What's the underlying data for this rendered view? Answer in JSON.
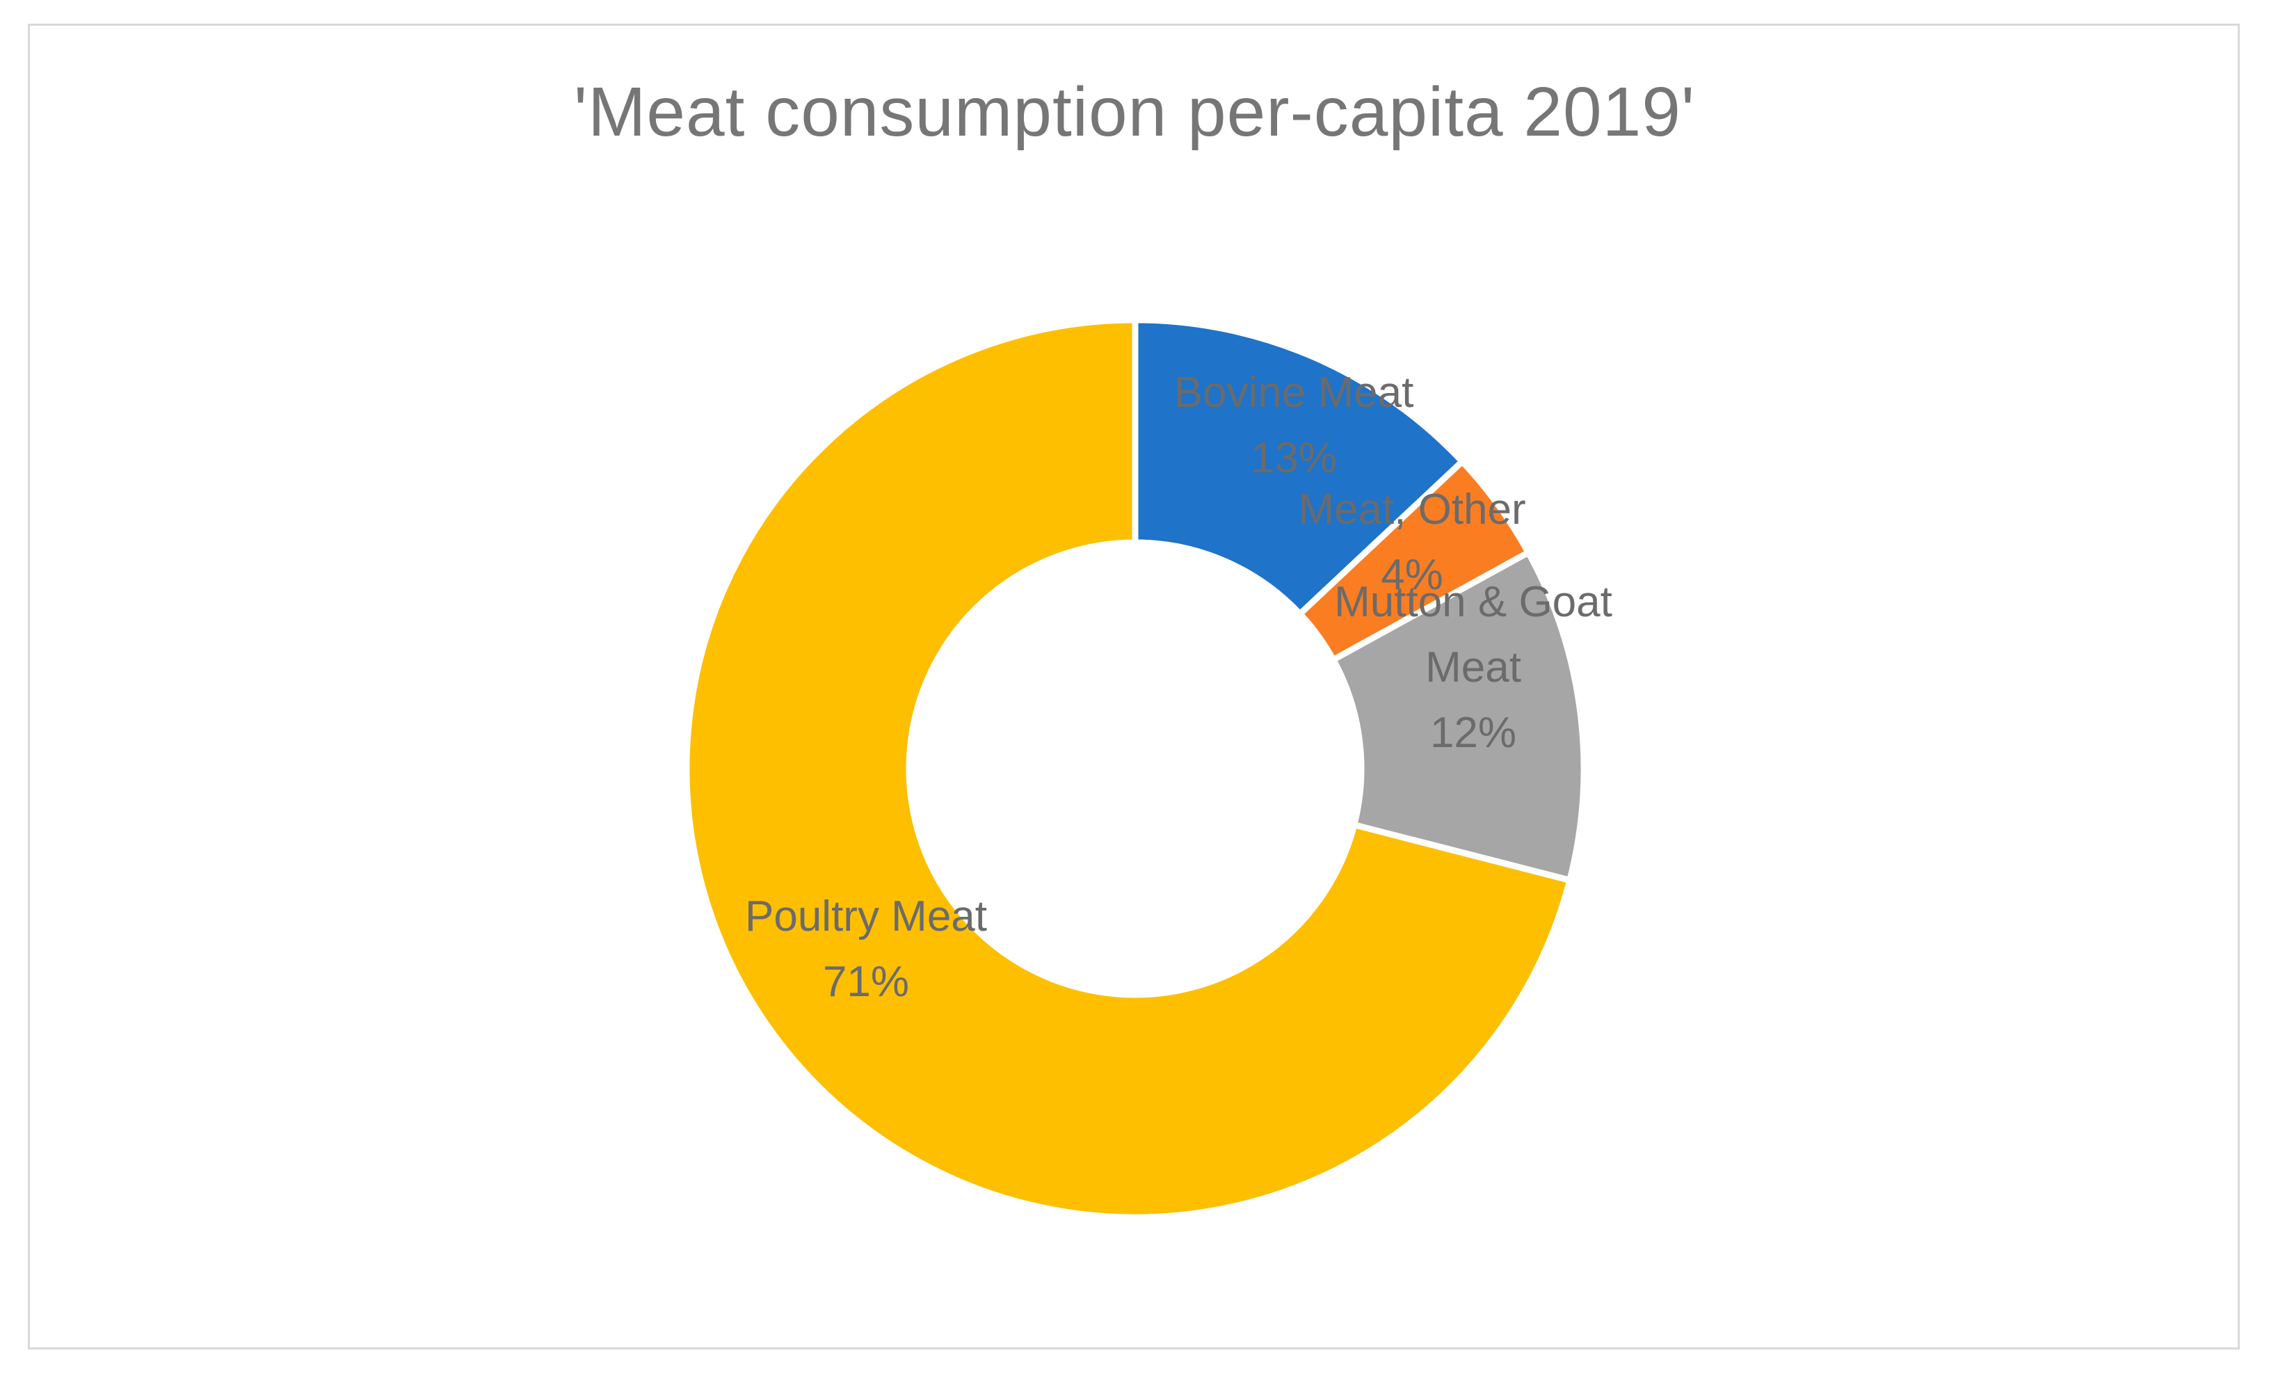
{
  "chart_data": {
    "type": "pie",
    "variant": "donut",
    "title": "'Meat consumption per-capita 2019'",
    "categories": [
      "Bovine Meat",
      "Meat, Other",
      "Mutton & Goat Meat",
      "Poultry Meat"
    ],
    "values": [
      13,
      4,
      12,
      71
    ],
    "percent_labels": [
      "13%",
      "4%",
      "12%",
      "71%"
    ],
    "label_lines": [
      [
        "Bovine Meat",
        "13%"
      ],
      [
        "Meat, Other",
        "4%"
      ],
      [
        "Mutton & Goat",
        "Meat",
        "12%"
      ],
      [
        "Poultry Meat",
        "71%"
      ]
    ],
    "colors": [
      "#1f73c8",
      "#fb7d22",
      "#a6a6a6",
      "#fdbf00"
    ],
    "label_color": "#6b6b6b",
    "slice_separator_color": "#ffffff",
    "legend": "none"
  }
}
